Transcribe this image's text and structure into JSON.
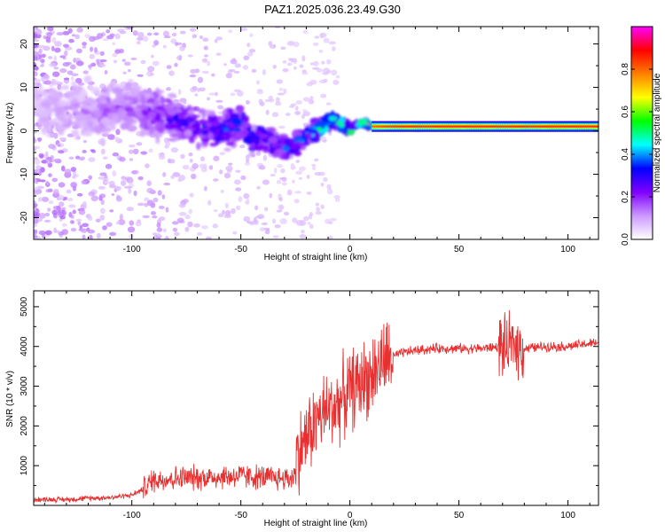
{
  "title": "PAZ1.2025.036.23.49.G30",
  "chart_data": [
    {
      "type": "heatmap",
      "xlabel": "Height of straight line (km)",
      "ylabel": "Frequency (Hz)",
      "xlim": [
        -145,
        114
      ],
      "ylim": [
        -25,
        24
      ],
      "xticks": [
        -100,
        -50,
        0,
        50,
        100
      ],
      "yticks": [
        -20,
        -10,
        0,
        10,
        20
      ],
      "colorbar": {
        "label": "Normalized spectral amplitude",
        "range": [
          0,
          1
        ],
        "ticks": [
          0.0,
          0.2,
          0.4,
          0.6,
          0.8
        ],
        "colors": [
          "#ffffff",
          "#cc99ff",
          "#7f00ff",
          "#0000ff",
          "#00ffff",
          "#00ff00",
          "#ffff00",
          "#ff7f00",
          "#ff0000",
          "#ff00ff"
        ]
      },
      "ridge": {
        "x": [
          -140,
          -120,
          -100,
          -90,
          -80,
          -70,
          -60,
          -50,
          -45,
          -40,
          -35,
          -30,
          -25,
          -20,
          -15,
          -10,
          -5,
          0,
          5,
          10,
          20,
          40,
          60,
          80,
          100,
          114
        ],
        "frequency": [
          5,
          4,
          6,
          4,
          3,
          1,
          0,
          2,
          -2,
          -1,
          -3,
          -4,
          -3,
          -1,
          0,
          2,
          2,
          0,
          2,
          1,
          1,
          1,
          1,
          1,
          1,
          1
        ],
        "amplitude": [
          0.1,
          0.15,
          0.2,
          0.25,
          0.3,
          0.3,
          0.35,
          0.4,
          0.35,
          0.35,
          0.35,
          0.4,
          0.4,
          0.45,
          0.5,
          0.55,
          0.6,
          0.6,
          0.65,
          0.8,
          0.85,
          0.85,
          0.85,
          0.85,
          0.85,
          0.85
        ]
      }
    },
    {
      "type": "line",
      "xlabel": "Height of straight line (km)",
      "ylabel": "SNR (10 * v/v)",
      "xlim": [
        -145,
        114
      ],
      "ylim": [
        0,
        5400
      ],
      "xticks": [
        -100,
        -50,
        0,
        50,
        100
      ],
      "yticks": [
        1000,
        2000,
        3000,
        4000,
        5000
      ],
      "series": [
        {
          "color": "#e83030",
          "x": [
            -145,
            -130,
            -120,
            -110,
            -100,
            -95,
            -90,
            -80,
            -70,
            -60,
            -50,
            -40,
            -30,
            -26,
            -24,
            -20,
            -15,
            -10,
            -5,
            0,
            5,
            10,
            15,
            20,
            25,
            30,
            40,
            50,
            60,
            70,
            72,
            75,
            78,
            80,
            90,
            100,
            114
          ],
          "y": [
            150,
            150,
            180,
            200,
            260,
            400,
            650,
            680,
            700,
            720,
            740,
            700,
            680,
            700,
            1300,
            1700,
            2200,
            2400,
            2600,
            2900,
            3100,
            3300,
            3600,
            3750,
            3850,
            3900,
            3950,
            3950,
            3950,
            4000,
            3900,
            4100,
            4000,
            3950,
            4000,
            4000,
            4100
          ]
        }
      ]
    }
  ]
}
